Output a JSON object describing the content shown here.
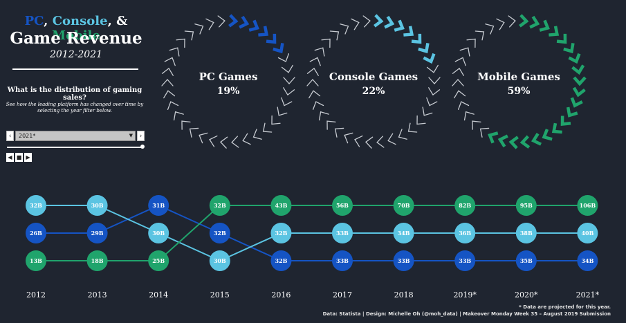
{
  "header": {
    "title_pc": "PC",
    "title_sep1": ", ",
    "title_console": "Console",
    "title_sep2": ", & ",
    "title_mobile": "Mobile",
    "title_line2": "Game Revenue",
    "years": "2012-2021",
    "question": "What is the distribution of gaming sales?",
    "description": "See how the leading platform has changed over time by selecting the year filter below."
  },
  "filter": {
    "selected": "2021*",
    "prev_glyph": "‹",
    "next_glyph": "›",
    "caret_glyph": "▼",
    "slider_position": 1.0,
    "play_back_glyph": "◀",
    "play_stop_glyph": "■",
    "play_fwd_glyph": "▶"
  },
  "colors": {
    "pc": "#1554c4",
    "console": "#5bc4e2",
    "mobile": "#20a46c",
    "background": "#1f2530",
    "chevron_inactive": "#c8ccd2"
  },
  "gauges": [
    {
      "label": "PC Games",
      "percent_text": "19%",
      "share": 0.19,
      "color_key": "pc"
    },
    {
      "label": "Console Games",
      "percent_text": "22%",
      "share": 0.22,
      "color_key": "console"
    },
    {
      "label": "Mobile Games",
      "percent_text": "59%",
      "share": 0.59,
      "color_key": "mobile"
    }
  ],
  "chart_data": {
    "type": "bump",
    "x": [
      "2012",
      "2013",
      "2014",
      "2015",
      "2016",
      "2017",
      "2018",
      "2019*",
      "2020*",
      "2021*"
    ],
    "series": [
      {
        "key": "pc",
        "values": [
          26,
          29,
          31,
          32,
          32,
          33,
          33,
          33,
          35,
          34
        ],
        "labels": [
          "26B",
          "29B",
          "31B",
          "32B",
          "32B",
          "33B",
          "33B",
          "33B",
          "35B",
          "34B"
        ],
        "rank": [
          2,
          2,
          1,
          2,
          3,
          3,
          3,
          3,
          3,
          3
        ]
      },
      {
        "key": "console",
        "values": [
          32,
          30,
          30,
          30,
          32,
          33,
          34,
          36,
          38,
          40
        ],
        "labels": [
          "32B",
          "30B",
          "30B",
          "30B",
          "32B",
          "33B",
          "34B",
          "36B",
          "38B",
          "40B"
        ],
        "rank": [
          1,
          1,
          2,
          3,
          2,
          2,
          2,
          2,
          2,
          2
        ]
      },
      {
        "key": "mobile",
        "values": [
          13,
          18,
          25,
          32,
          43,
          56,
          70,
          82,
          95,
          106
        ],
        "labels": [
          "13B",
          "18B",
          "25B",
          "32B",
          "43B",
          "56B",
          "70B",
          "82B",
          "95B",
          "106B"
        ],
        "rank": [
          3,
          3,
          3,
          1,
          1,
          1,
          1,
          1,
          1,
          1
        ]
      }
    ]
  },
  "footer": {
    "note": "* Data are projected for this year.",
    "credits": "Data: Statista |  Design: Michelle Oh (@moh_data) | Makeover Monday Week 35 – August 2019 Submission"
  }
}
